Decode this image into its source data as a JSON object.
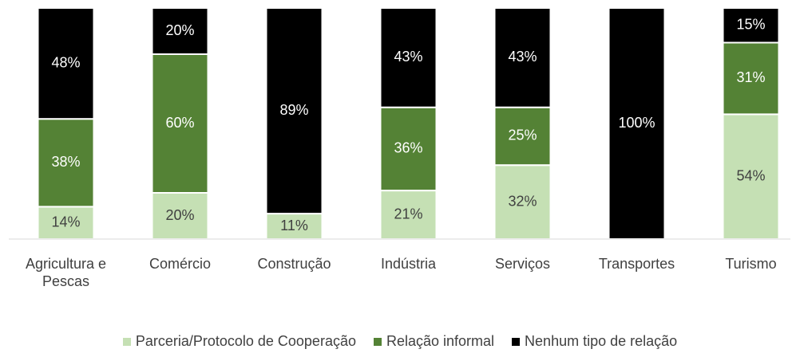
{
  "chart_data": {
    "type": "stacked_bar_100",
    "categories": [
      "Agricultura e Pescas",
      "Comércio",
      "Construção",
      "Indústria",
      "Serviços",
      "Transportes",
      "Turismo"
    ],
    "series": [
      {
        "name": "Parceria/Protocolo de Cooperação",
        "color": "#c5e0b4",
        "label_color": "#404040",
        "values": [
          14,
          20,
          11,
          21,
          32,
          0,
          54
        ],
        "value_labels": [
          "14%",
          "20%",
          "11%",
          "21%",
          "32%",
          null,
          "54%"
        ]
      },
      {
        "name": "Relação informal",
        "color": "#548235",
        "label_color": "#ffffff",
        "values": [
          38,
          60,
          0,
          36,
          25,
          0,
          31
        ],
        "value_labels": [
          "38%",
          "60%",
          null,
          "36%",
          "25%",
          null,
          "31%"
        ]
      },
      {
        "name": "Nenhum tipo de relação",
        "color": "#000000",
        "label_color": "#ffffff",
        "values": [
          48,
          20,
          89,
          43,
          43,
          100,
          15
        ],
        "value_labels": [
          "48%",
          "20%",
          "89%",
          "43%",
          "43%",
          "100%",
          "15%"
        ]
      }
    ],
    "ylim": [
      0,
      100
    ],
    "legend": "bottom"
  }
}
